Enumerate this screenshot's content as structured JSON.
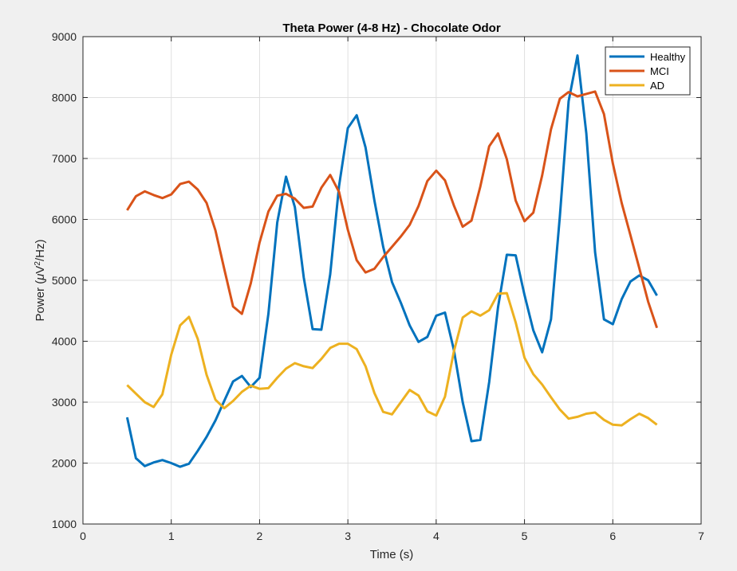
{
  "chart_data": {
    "type": "line",
    "title": "Theta Power (4-8 Hz) - Chocolate Odor",
    "xlabel": "Time (s)",
    "ylabel_prefix": "Power (",
    "ylabel_mu": "μ",
    "ylabel_v": "V",
    "ylabel_sup": "2",
    "ylabel_suffix": "/Hz)",
    "xlim": [
      0,
      7
    ],
    "ylim": [
      1000,
      9000
    ],
    "xticks": [
      0,
      1,
      2,
      3,
      4,
      5,
      6,
      7
    ],
    "yticks": [
      1000,
      2000,
      3000,
      4000,
      5000,
      6000,
      7000,
      8000,
      9000
    ],
    "grid": true,
    "legend_location": "top-right",
    "x": [
      0.5,
      0.6,
      0.7,
      0.8,
      0.9,
      1.0,
      1.1,
      1.2,
      1.3,
      1.4,
      1.5,
      1.6,
      1.7,
      1.8,
      1.9,
      2.0,
      2.1,
      2.2,
      2.3,
      2.4,
      2.5,
      2.6,
      2.7,
      2.8,
      2.9,
      3.0,
      3.1,
      3.2,
      3.3,
      3.4,
      3.5,
      3.6,
      3.7,
      3.8,
      3.9,
      4.0,
      4.1,
      4.2,
      4.3,
      4.4,
      4.5,
      4.6,
      4.7,
      4.8,
      4.9,
      5.0,
      5.1,
      5.2,
      5.3,
      5.4,
      5.5,
      5.6,
      5.7,
      5.8,
      5.9,
      6.0,
      6.1,
      6.2,
      6.3,
      6.4,
      6.5
    ],
    "series": [
      {
        "name": "Healthy",
        "color": "#0072bd",
        "values": [
          2750,
          2080,
          1950,
          2010,
          2050,
          2000,
          1940,
          1990,
          2200,
          2430,
          2700,
          3020,
          3340,
          3430,
          3250,
          3400,
          4450,
          5950,
          6700,
          6200,
          5050,
          4200,
          4190,
          5100,
          6550,
          7500,
          7710,
          7180,
          6310,
          5550,
          4970,
          4630,
          4260,
          3990,
          4070,
          4420,
          4470,
          3860,
          3000,
          2360,
          2380,
          3330,
          4560,
          5420,
          5410,
          4760,
          4180,
          3820,
          4360,
          6050,
          7940,
          8690,
          7410,
          5460,
          4360,
          4280,
          4690,
          4980,
          5080,
          5000,
          4750
        ]
      },
      {
        "name": "MCI",
        "color": "#d95319",
        "values": [
          6150,
          6380,
          6460,
          6400,
          6350,
          6410,
          6580,
          6620,
          6490,
          6270,
          5820,
          5190,
          4570,
          4450,
          4950,
          5620,
          6130,
          6390,
          6420,
          6340,
          6190,
          6210,
          6520,
          6730,
          6450,
          5830,
          5330,
          5130,
          5190,
          5380,
          5550,
          5720,
          5910,
          6220,
          6630,
          6800,
          6640,
          6230,
          5880,
          5980,
          6540,
          7200,
          7410,
          6990,
          6310,
          5970,
          6110,
          6720,
          7480,
          7980,
          8090,
          8020,
          8060,
          8100,
          7730,
          6920,
          6270,
          5740,
          5200,
          4650,
          4220
        ]
      },
      {
        "name": "AD",
        "color": "#edb120",
        "values": [
          3280,
          3140,
          3000,
          2920,
          3130,
          3780,
          4260,
          4400,
          4040,
          3450,
          3040,
          2900,
          3020,
          3170,
          3270,
          3220,
          3230,
          3400,
          3550,
          3640,
          3590,
          3560,
          3710,
          3890,
          3960,
          3960,
          3870,
          3590,
          3150,
          2840,
          2800,
          3000,
          3200,
          3110,
          2850,
          2780,
          3090,
          3830,
          4390,
          4490,
          4420,
          4510,
          4780,
          4790,
          4310,
          3730,
          3460,
          3290,
          3080,
          2880,
          2730,
          2760,
          2810,
          2830,
          2710,
          2630,
          2620,
          2720,
          2810,
          2740,
          2630
        ]
      }
    ]
  }
}
